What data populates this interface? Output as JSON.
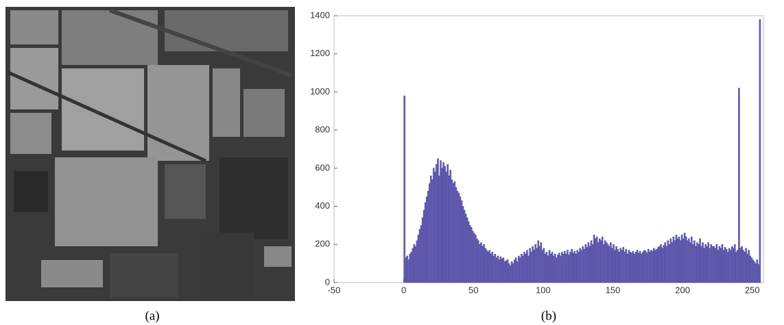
{
  "captions": [
    "(a)",
    "(b)"
  ],
  "chart_data": {
    "type": "histogram",
    "color": "#6c66b8",
    "edge_color": "#3d3692",
    "bins": [
      0,
      1,
      2,
      3,
      4,
      5,
      6,
      7,
      8,
      9,
      10,
      11,
      12,
      13,
      14,
      15,
      16,
      17,
      18,
      19,
      20,
      21,
      22,
      23,
      24,
      25,
      26,
      27,
      28,
      29,
      30,
      31,
      32,
      33,
      34,
      35,
      36,
      37,
      38,
      39,
      40,
      41,
      42,
      43,
      44,
      45,
      46,
      47,
      48,
      49,
      50,
      51,
      52,
      53,
      54,
      55,
      56,
      57,
      58,
      59,
      60,
      61,
      62,
      63,
      64,
      65,
      66,
      67,
      68,
      69,
      70,
      71,
      72,
      73,
      74,
      75,
      76,
      77,
      78,
      79,
      80,
      81,
      82,
      83,
      84,
      85,
      86,
      87,
      88,
      89,
      90,
      91,
      92,
      93,
      94,
      95,
      96,
      97,
      98,
      99,
      100,
      101,
      102,
      103,
      104,
      105,
      106,
      107,
      108,
      109,
      110,
      111,
      112,
      113,
      114,
      115,
      116,
      117,
      118,
      119,
      120,
      121,
      122,
      123,
      124,
      125,
      126,
      127,
      128,
      129,
      130,
      131,
      132,
      133,
      134,
      135,
      136,
      137,
      138,
      139,
      140,
      141,
      142,
      143,
      144,
      145,
      146,
      147,
      148,
      149,
      150,
      151,
      152,
      153,
      154,
      155,
      156,
      157,
      158,
      159,
      160,
      161,
      162,
      163,
      164,
      165,
      166,
      167,
      168,
      169,
      170,
      171,
      172,
      173,
      174,
      175,
      176,
      177,
      178,
      179,
      180,
      181,
      182,
      183,
      184,
      185,
      186,
      187,
      188,
      189,
      190,
      191,
      192,
      193,
      194,
      195,
      196,
      197,
      198,
      199,
      200,
      201,
      202,
      203,
      204,
      205,
      206,
      207,
      208,
      209,
      210,
      211,
      212,
      213,
      214,
      215,
      216,
      217,
      218,
      219,
      220,
      221,
      222,
      223,
      224,
      225,
      226,
      227,
      228,
      229,
      230,
      231,
      232,
      233,
      234,
      235,
      236,
      237,
      238,
      239,
      240,
      241,
      242,
      243,
      244,
      245,
      246,
      247,
      248,
      249,
      250,
      251,
      252,
      253,
      254,
      255,
      256
    ],
    "counts": [
      980,
      130,
      140,
      120,
      150,
      160,
      180,
      200,
      190,
      220,
      250,
      280,
      300,
      340,
      380,
      420,
      450,
      480,
      520,
      560,
      540,
      600,
      580,
      620,
      650,
      560,
      640,
      600,
      630,
      610,
      580,
      620,
      560,
      590,
      540,
      520,
      530,
      500,
      480,
      470,
      450,
      430,
      400,
      380,
      360,
      340,
      320,
      300,
      290,
      270,
      260,
      250,
      230,
      220,
      200,
      210,
      190,
      200,
      180,
      170,
      160,
      170,
      150,
      160,
      140,
      150,
      130,
      140,
      120,
      135,
      125,
      130,
      110,
      115,
      120,
      100,
      90,
      110,
      100,
      120,
      130,
      110,
      140,
      130,
      150,
      140,
      160,
      150,
      170,
      140,
      180,
      160,
      190,
      170,
      200,
      180,
      220,
      190,
      210,
      170,
      180,
      150,
      160,
      140,
      170,
      150,
      160,
      140,
      150,
      130,
      145,
      155,
      140,
      160,
      150,
      165,
      150,
      170,
      145,
      160,
      175,
      155,
      165,
      150,
      170,
      160,
      180,
      170,
      190,
      175,
      200,
      185,
      210,
      190,
      220,
      200,
      250,
      230,
      240,
      210,
      230,
      220,
      240,
      200,
      220,
      210,
      200,
      190,
      210,
      180,
      200,
      170,
      190,
      175,
      160,
      180,
      170,
      185,
      160,
      175,
      150,
      170,
      160,
      155,
      165,
      150,
      160,
      170,
      155,
      165,
      150,
      160,
      170,
      165,
      155,
      175,
      160,
      170,
      165,
      180,
      170,
      175,
      185,
      190,
      200,
      180,
      195,
      210,
      190,
      220,
      200,
      230,
      210,
      240,
      220,
      250,
      230,
      240,
      220,
      250,
      230,
      260,
      240,
      220,
      230,
      210,
      240,
      200,
      220,
      190,
      210,
      200,
      230,
      190,
      210,
      180,
      200,
      190,
      210,
      180,
      200,
      190,
      190,
      180,
      200,
      170,
      190,
      180,
      200,
      170,
      185,
      175,
      160,
      180,
      170,
      190,
      180,
      200,
      160,
      170,
      1020,
      180,
      190,
      170,
      160,
      180,
      150,
      170,
      140,
      130,
      120,
      110,
      100,
      120,
      95,
      1380
    ],
    "xlim": [
      -50,
      258
    ],
    "xticks": [
      -50,
      0,
      50,
      100,
      150,
      200,
      250
    ],
    "ylim": [
      0,
      1400
    ],
    "yticks": [
      0,
      200,
      400,
      600,
      800,
      1000,
      1200,
      1400
    ]
  }
}
